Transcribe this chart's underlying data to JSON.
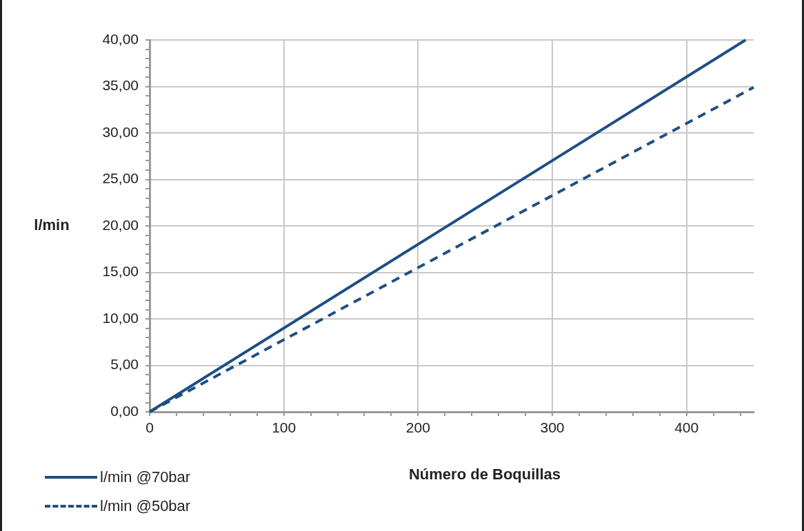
{
  "chart_data": {
    "type": "line",
    "xlabel": "Número de Boquillas",
    "ylabel": "l/min",
    "series": [
      {
        "name": "l/min @70bar",
        "color": "#1f4e84",
        "x": [
          0,
          444
        ],
        "values": [
          0,
          40
        ],
        "line_style": "solid"
      },
      {
        "name": "l/min @50bar",
        "color": "#1f4e84",
        "x": [
          0,
          450
        ],
        "values": [
          0,
          34.9
        ],
        "line_style": "dashed"
      }
    ],
    "xlim": [
      0,
      450
    ],
    "xticks": [
      0,
      {
        "value": 20,
        "label": null
      },
      {
        "value": 40,
        "label": null
      },
      {
        "value": 60,
        "label": null
      },
      {
        "value": 80,
        "label": null
      },
      100,
      {
        "value": 120,
        "label": null
      },
      {
        "value": 140,
        "label": null
      },
      {
        "value": 160,
        "label": null
      },
      {
        "value": 180,
        "label": null
      },
      200,
      {
        "value": 220,
        "label": null
      },
      {
        "value": 240,
        "label": null
      },
      {
        "value": 260,
        "label": null
      },
      {
        "value": 280,
        "label": null
      },
      300,
      {
        "value": 320,
        "label": null
      },
      {
        "value": 340,
        "label": null
      },
      {
        "value": 360,
        "label": null
      },
      {
        "value": 380,
        "label": null
      },
      400,
      {
        "value": 420,
        "label": null
      },
      {
        "value": 440,
        "label": null
      }
    ],
    "ylim": [
      0,
      40
    ],
    "yticks": [
      {
        "value": 0,
        "label": "0,00"
      },
      {
        "value": 1,
        "label": null
      },
      {
        "value": 2,
        "label": null
      },
      {
        "value": 3,
        "label": null
      },
      {
        "value": 4,
        "label": null
      },
      {
        "value": 5,
        "label": "5,00"
      },
      {
        "value": 6,
        "label": null
      },
      {
        "value": 7,
        "label": null
      },
      {
        "value": 8,
        "label": null
      },
      {
        "value": 9,
        "label": null
      },
      {
        "value": 10,
        "label": "10,00"
      },
      {
        "value": 11,
        "label": null
      },
      {
        "value": 12,
        "label": null
      },
      {
        "value": 13,
        "label": null
      },
      {
        "value": 14,
        "label": null
      },
      {
        "value": 15,
        "label": "15,00"
      },
      {
        "value": 16,
        "label": null
      },
      {
        "value": 17,
        "label": null
      },
      {
        "value": 18,
        "label": null
      },
      {
        "value": 19,
        "label": null
      },
      {
        "value": 20,
        "label": "20,00"
      },
      {
        "value": 21,
        "label": null
      },
      {
        "value": 22,
        "label": null
      },
      {
        "value": 23,
        "label": null
      },
      {
        "value": 24,
        "label": null
      },
      {
        "value": 25,
        "label": "25,00"
      },
      {
        "value": 26,
        "label": null
      },
      {
        "value": 27,
        "label": null
      },
      {
        "value": 28,
        "label": null
      },
      {
        "value": 29,
        "label": null
      },
      {
        "value": 30,
        "label": "30,00"
      },
      {
        "value": 31,
        "label": null
      },
      {
        "value": 32,
        "label": null
      },
      {
        "value": 33,
        "label": null
      },
      {
        "value": 34,
        "label": null
      },
      {
        "value": 35,
        "label": "35,00"
      },
      {
        "value": 36,
        "label": null
      },
      {
        "value": 37,
        "label": null
      },
      {
        "value": 38,
        "label": null
      },
      {
        "value": 39,
        "label": null
      },
      {
        "value": 40,
        "label": "40,00"
      }
    ],
    "grid": true,
    "legend": "bottom left",
    "marker": "none"
  }
}
